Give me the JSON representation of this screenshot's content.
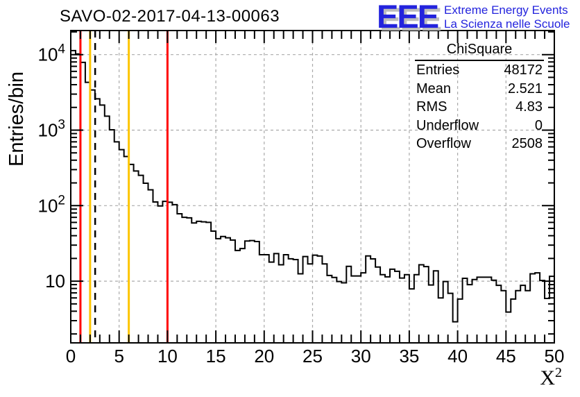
{
  "header": {
    "title": "SAVO-02-2017-04-13-00063"
  },
  "logo": {
    "acronym": "EEE",
    "line1": "Extreme Energy Events",
    "line2": "La Scienza nelle Scuole",
    "text_color": "#2323dd",
    "shadow_color": "#bdbdbd"
  },
  "y_axis_title": "Entries/bin",
  "x_axis_title_base": "X",
  "x_axis_title_sup": "2",
  "stats": {
    "title": "ChiSquare",
    "rows": [
      {
        "label": "Entries",
        "value": "48172"
      },
      {
        "label": "Mean",
        "value": "2.521"
      },
      {
        "label": "RMS",
        "value": "4.83"
      },
      {
        "label": "Underflow",
        "value": "0"
      },
      {
        "label": "Overflow",
        "value": "2508"
      }
    ]
  },
  "chart_data": {
    "type": "bar",
    "style": "step-outline-histogram",
    "title": "SAVO-02-2017-04-13-00063",
    "xlabel": "X²",
    "ylabel": "Entries/bin",
    "x_range": [
      0,
      50
    ],
    "y_scale": "log",
    "y_range": [
      1.5,
      21000
    ],
    "grid": true,
    "legend": false,
    "bin_start": 0,
    "bin_width": 0.5,
    "counts": [
      11300,
      10200,
      7900,
      4300,
      3400,
      2600,
      2150,
      1530,
      1010,
      700,
      552,
      447,
      352,
      288,
      252,
      198,
      162,
      112,
      99,
      114,
      111,
      103,
      78,
      70,
      69,
      59,
      62,
      61,
      60,
      46,
      36.5,
      39,
      37.5,
      35,
      25.5,
      27,
      34,
      34.5,
      33.5,
      22.4,
      22.4,
      17.9,
      23.2,
      16.5,
      22.4,
      19.8,
      19.3,
      12.5,
      21.2,
      16.9,
      22.1,
      21.5,
      16.9,
      11.9,
      11.2,
      9.9,
      9.5,
      15.7,
      11.7,
      11.7,
      12.9,
      21.6,
      19.7,
      15.4,
      12.2,
      11.4,
      14.4,
      13.5,
      11,
      12.2,
      7.9,
      12.2,
      16.5,
      15.6,
      8.9,
      13.7,
      6,
      9.9,
      6.9,
      2.9,
      5.8,
      10.9,
      9,
      10.5,
      11.3,
      11.3,
      11.3,
      10.3,
      8.8,
      7.5,
      3.9,
      5.8,
      7.5,
      8.8,
      7.5,
      12.5,
      12.9,
      10.2,
      5.9,
      11.6
    ],
    "x_tick_labels": [
      "0",
      "5",
      "10",
      "15",
      "20",
      "25",
      "30",
      "35",
      "40",
      "45",
      "50"
    ],
    "x_tick_values": [
      0,
      5,
      10,
      15,
      20,
      25,
      30,
      35,
      40,
      45,
      50
    ],
    "y_decade_exponents": [
      1,
      2,
      3,
      4
    ],
    "marker_lines": [
      {
        "x": 1,
        "color": "#ff0000",
        "dashed": false
      },
      {
        "x": 2,
        "color": "#fdc500",
        "dashed": false
      },
      {
        "x": 2.521,
        "color": "#000000",
        "dashed": true
      },
      {
        "x": 6,
        "color": "#fdc500",
        "dashed": false
      },
      {
        "x": 10,
        "color": "#ff0000",
        "dashed": false
      }
    ],
    "histogram_color": "#000000",
    "grid_color": "#aaaaaa",
    "axis_color": "#000000"
  }
}
